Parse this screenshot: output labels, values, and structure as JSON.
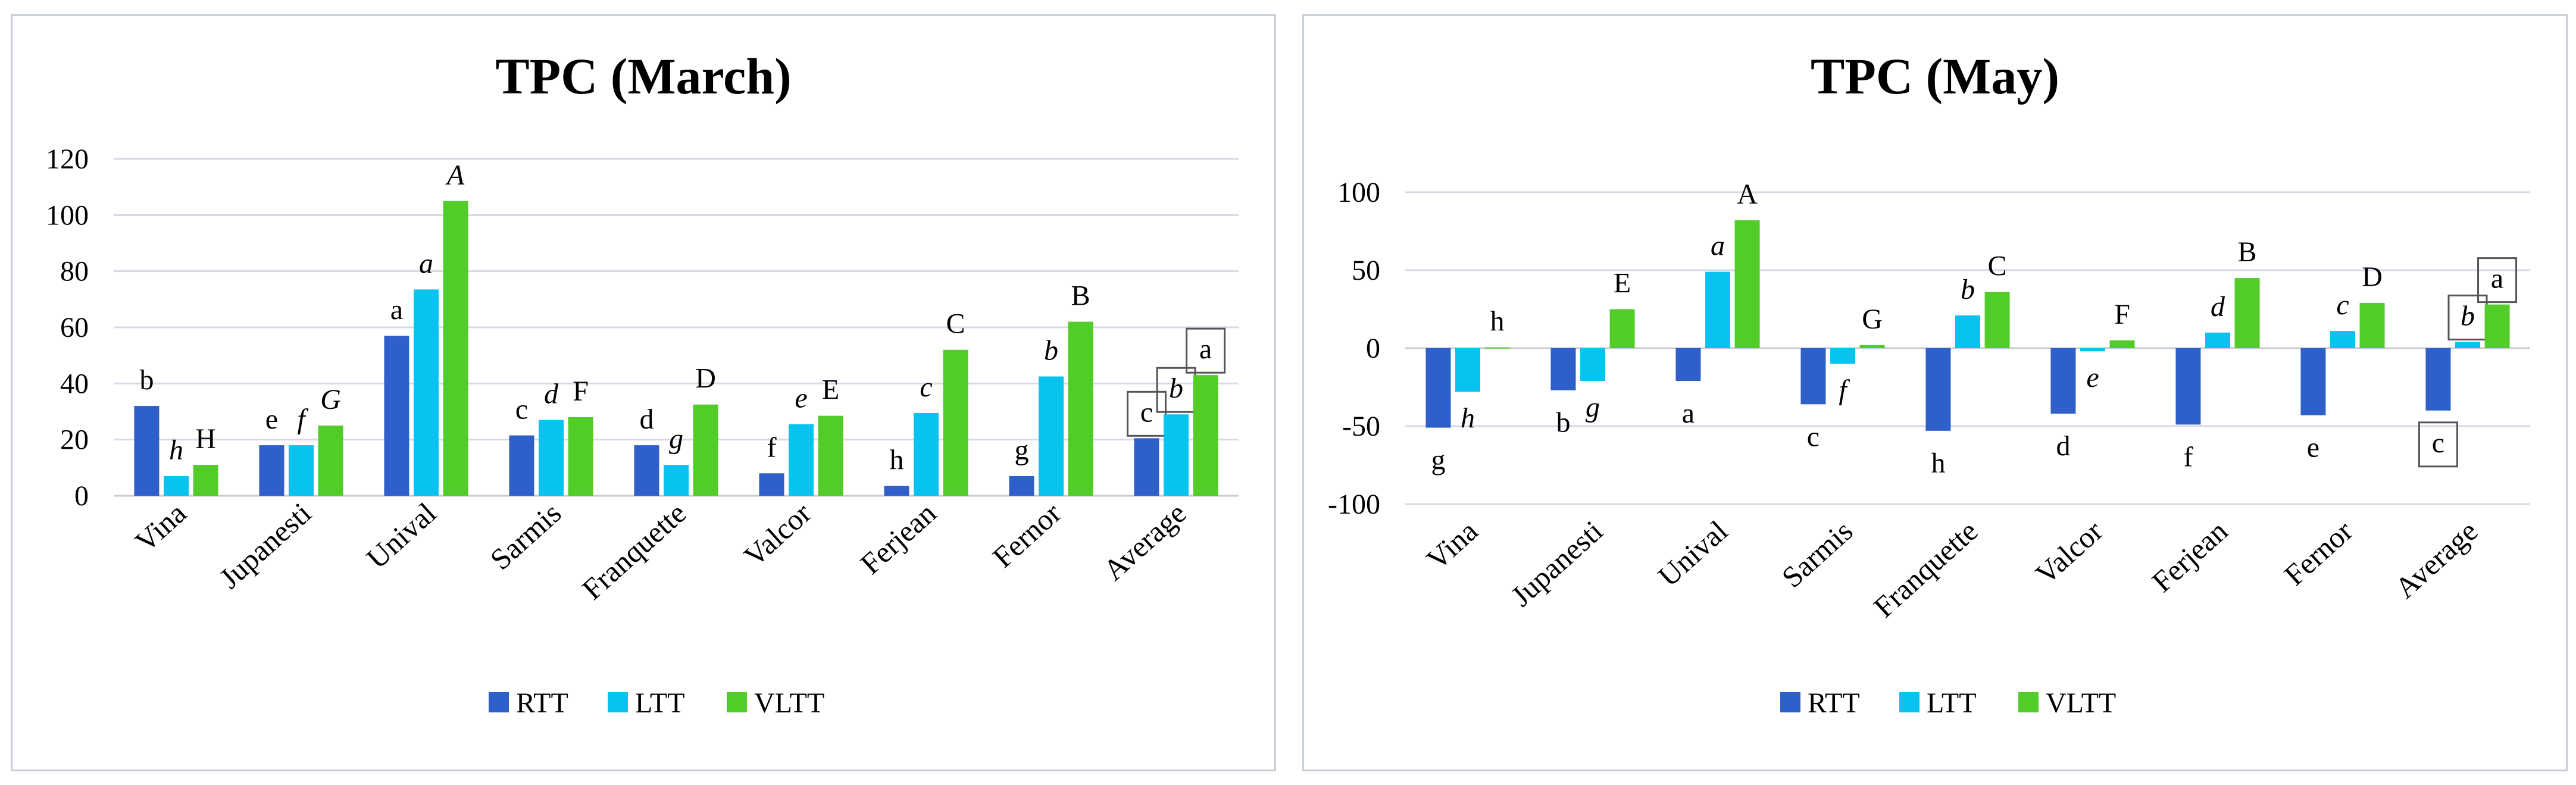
{
  "colors": {
    "rtt": "#2f5fc9",
    "ltt": "#08c2f0",
    "vltt": "#52cc28"
  },
  "legend": [
    "RTT",
    "LTT",
    "VLTT"
  ],
  "chart_data": [
    {
      "type": "bar",
      "title": "TPC (March)",
      "categories": [
        "Vina",
        "Jupanesti",
        "Unival",
        "Sarmis",
        "Franquette",
        "Valcor",
        "Ferjean",
        "Fernor",
        "Average"
      ],
      "ylim": [
        0,
        120
      ],
      "yticks": [
        0,
        20,
        40,
        60,
        80,
        100,
        120
      ],
      "grid": true,
      "legend_position": "bottom",
      "series": [
        {
          "name": "RTT",
          "values": [
            32,
            18,
            57,
            21.5,
            18,
            8,
            3.5,
            7,
            20.5
          ],
          "letters": [
            "b",
            "e",
            "a",
            "c",
            "d",
            "f",
            "h",
            "g",
            "c"
          ],
          "italic": false
        },
        {
          "name": "LTT",
          "values": [
            7,
            18,
            73.5,
            27,
            11,
            25.5,
            29.5,
            42.5,
            29
          ],
          "letters": [
            "h",
            "f",
            "a",
            "d",
            "g",
            "e",
            "c",
            "b",
            "b"
          ],
          "italic": true
        },
        {
          "name": "VLTT",
          "values": [
            11,
            25,
            105,
            28,
            32.5,
            28.5,
            52,
            62,
            43
          ],
          "letters": [
            "H",
            "G",
            "A",
            "F",
            "D",
            "E",
            "C",
            "B",
            "a"
          ],
          "italic_flags": [
            false,
            true,
            true,
            false,
            false,
            false,
            false,
            false,
            false
          ]
        }
      ],
      "boxed_average": true
    },
    {
      "type": "bar",
      "title": "TPC (May)",
      "categories": [
        "Vina",
        "Jupanesti",
        "Unival",
        "Sarmis",
        "Franquette",
        "Valcor",
        "Ferjean",
        "Fernor",
        "Average"
      ],
      "ylim": [
        -100,
        100
      ],
      "yticks": [
        -100,
        -50,
        0,
        50,
        100
      ],
      "grid": true,
      "legend_position": "bottom",
      "series": [
        {
          "name": "RTT",
          "values": [
            -51,
            -27,
            -21,
            -36,
            -53,
            -42,
            -49,
            -43,
            -40
          ],
          "letters": [
            "g",
            "b",
            "a",
            "c",
            "h",
            "d",
            "f",
            "e",
            "c"
          ],
          "italic": false
        },
        {
          "name": "LTT",
          "values": [
            -28,
            -21,
            49,
            -10,
            21,
            -2,
            10,
            11,
            4
          ],
          "letters": [
            "h",
            "g",
            "a",
            "f",
            "b",
            "e",
            "d",
            "c",
            "b"
          ],
          "italic": true
        },
        {
          "name": "VLTT",
          "values": [
            0.5,
            25,
            82,
            2,
            36,
            5,
            45,
            29,
            28
          ],
          "letters": [
            "h",
            "E",
            "A",
            "G",
            "C",
            "F",
            "B",
            "D",
            "a"
          ],
          "italic": false
        }
      ],
      "boxed_average": true
    }
  ]
}
